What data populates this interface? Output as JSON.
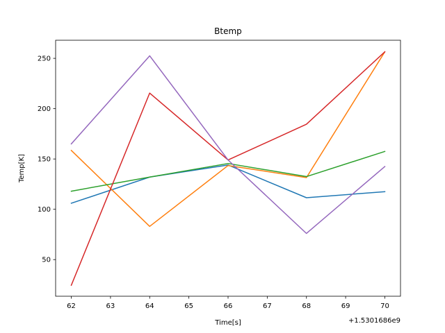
{
  "chart_data": {
    "type": "line",
    "title": "Btemp",
    "xlabel": "Time[s]",
    "ylabel": "Temp[K]",
    "x_offset_label": "+1.5301686e9",
    "x": [
      62,
      64,
      66,
      68,
      70
    ],
    "xlim": [
      61.6,
      70.4
    ],
    "ylim": [
      13.6,
      268.0
    ],
    "x_ticks": [
      62,
      63,
      64,
      65,
      66,
      67,
      68,
      69,
      70
    ],
    "y_ticks": [
      50,
      100,
      150,
      200,
      250
    ],
    "grid": false,
    "series": [
      {
        "color": "#1f77b4",
        "values": [
          106,
          132,
          144,
          111.5,
          117.5
        ]
      },
      {
        "color": "#ff7f0e",
        "values": [
          158.5,
          83,
          143.5,
          131.5,
          256.5
        ]
      },
      {
        "color": "#2ca02c",
        "values": [
          118,
          132,
          145.5,
          132.5,
          157.5
        ]
      },
      {
        "color": "#d62728",
        "values": [
          24.5,
          215.5,
          149,
          184.5,
          256.5
        ]
      },
      {
        "color": "#9467bd",
        "values": [
          165,
          252.5,
          149,
          76,
          142.5
        ]
      }
    ]
  }
}
